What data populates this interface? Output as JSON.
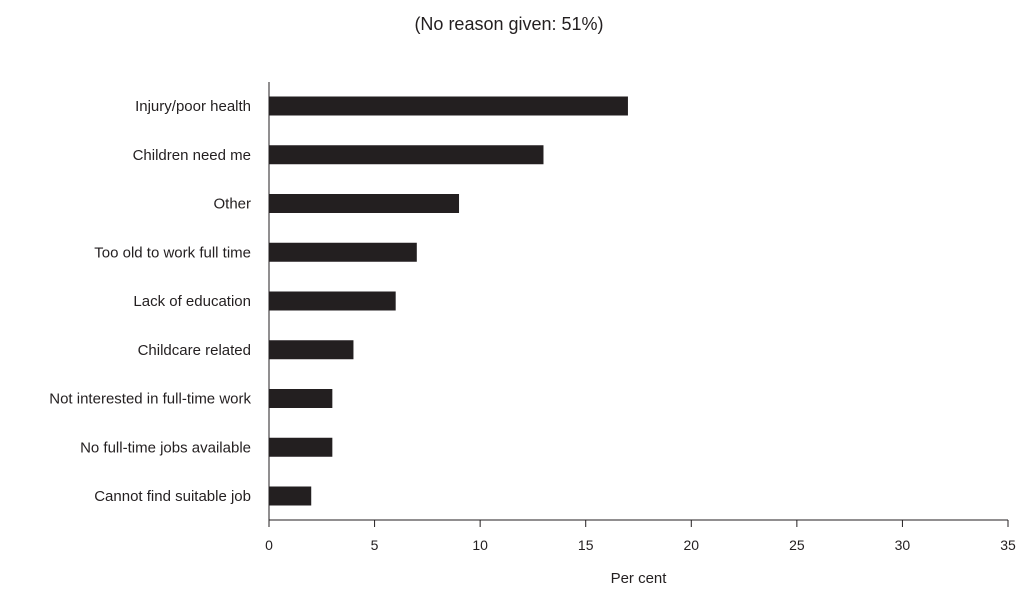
{
  "chart_data": {
    "type": "bar",
    "orientation": "horizontal",
    "subtitle": "(No reason given: 51%)",
    "categories": [
      "Injury/poor health",
      "Children need me",
      "Other",
      "Too old to work full time",
      "Lack of education",
      "Childcare related",
      "Not interested in full-time work",
      "No full-time jobs available",
      "Cannot find suitable job"
    ],
    "values": [
      17,
      13,
      9,
      7,
      6,
      4,
      3,
      3,
      2
    ],
    "xlabel": "Per cent",
    "ylabel": "",
    "xlim": [
      0,
      35
    ],
    "xticks": [
      "0",
      "5",
      "10",
      "15",
      "20",
      "25",
      "30",
      "35"
    ],
    "grid": false,
    "legend": "none",
    "bar_color": "#231f20"
  }
}
